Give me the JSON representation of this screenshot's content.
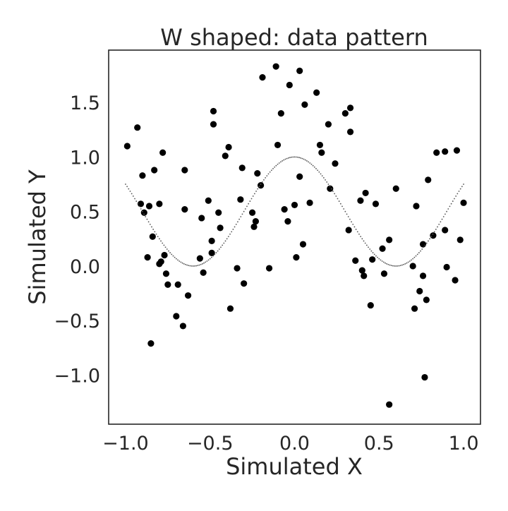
{
  "chart_data": {
    "type": "scatter",
    "title": "W shaped: data pattern",
    "xlabel": "Simulated X",
    "ylabel": "Simulated Y",
    "xlim": [
      -1.1,
      1.1
    ],
    "ylim": [
      -1.45,
      1.98
    ],
    "xticks": [
      -1.0,
      -0.5,
      0.0,
      0.5,
      1.0
    ],
    "xtick_labels": [
      "−1.0",
      "−0.5",
      "0.0",
      "0.5",
      "1.0"
    ],
    "yticks": [
      -1.0,
      -0.5,
      0.0,
      0.5,
      1.0,
      1.5
    ],
    "ytick_labels": [
      "−1.0",
      "−0.5",
      "0.0",
      "0.5",
      "1.0",
      "1.5"
    ],
    "grid": false,
    "point_color": "#000000",
    "curve_color": "#555555",
    "series": [
      {
        "kind": "scatter",
        "points": [
          [
            -0.99,
            1.1
          ],
          [
            -0.93,
            1.27
          ],
          [
            -0.91,
            0.57
          ],
          [
            -0.9,
            0.83
          ],
          [
            -0.89,
            0.49
          ],
          [
            -0.87,
            0.08
          ],
          [
            -0.86,
            0.55
          ],
          [
            -0.85,
            -0.71
          ],
          [
            -0.84,
            0.27
          ],
          [
            -0.83,
            0.88
          ],
          [
            -0.8,
            0.57
          ],
          [
            -0.8,
            0.02
          ],
          [
            -0.79,
            0.04
          ],
          [
            -0.78,
            1.04
          ],
          [
            -0.77,
            0.1
          ],
          [
            -0.76,
            -0.07
          ],
          [
            -0.75,
            -0.17
          ],
          [
            -0.7,
            -0.46
          ],
          [
            -0.69,
            -0.17
          ],
          [
            -0.66,
            -0.55
          ],
          [
            -0.65,
            0.88
          ],
          [
            -0.65,
            0.52
          ],
          [
            -0.63,
            -0.27
          ],
          [
            -0.56,
            0.07
          ],
          [
            -0.55,
            0.44
          ],
          [
            -0.54,
            -0.06
          ],
          [
            -0.51,
            0.6
          ],
          [
            -0.49,
            0.12
          ],
          [
            -0.49,
            0.23
          ],
          [
            -0.48,
            1.42
          ],
          [
            -0.48,
            1.3
          ],
          [
            -0.45,
            0.49
          ],
          [
            -0.44,
            0.35
          ],
          [
            -0.41,
            1.01
          ],
          [
            -0.39,
            1.09
          ],
          [
            -0.38,
            -0.39
          ],
          [
            -0.34,
            -0.02
          ],
          [
            -0.32,
            0.61
          ],
          [
            -0.31,
            0.9
          ],
          [
            -0.3,
            -0.16
          ],
          [
            -0.25,
            0.49
          ],
          [
            -0.24,
            0.36
          ],
          [
            -0.23,
            0.41
          ],
          [
            -0.22,
            0.85
          ],
          [
            -0.2,
            0.74
          ],
          [
            -0.19,
            1.73
          ],
          [
            -0.15,
            -0.02
          ],
          [
            -0.11,
            1.83
          ],
          [
            -0.1,
            1.11
          ],
          [
            -0.08,
            1.4
          ],
          [
            -0.06,
            0.52
          ],
          [
            -0.04,
            0.41
          ],
          [
            -0.03,
            1.66
          ],
          [
            0.0,
            0.56
          ],
          [
            0.01,
            0.08
          ],
          [
            0.03,
            0.82
          ],
          [
            0.03,
            1.79
          ],
          [
            0.05,
            0.2
          ],
          [
            0.06,
            1.48
          ],
          [
            0.09,
            0.58
          ],
          [
            0.13,
            1.59
          ],
          [
            0.15,
            1.11
          ],
          [
            0.16,
            1.04
          ],
          [
            0.2,
            1.3
          ],
          [
            0.21,
            0.71
          ],
          [
            0.24,
            0.94
          ],
          [
            0.3,
            1.4
          ],
          [
            0.32,
            0.33
          ],
          [
            0.33,
            1.23
          ],
          [
            0.33,
            1.45
          ],
          [
            0.36,
            0.05
          ],
          [
            0.39,
            0.6
          ],
          [
            0.4,
            -0.04
          ],
          [
            0.41,
            -0.09
          ],
          [
            0.42,
            0.67
          ],
          [
            0.45,
            -0.36
          ],
          [
            0.46,
            0.06
          ],
          [
            0.48,
            0.57
          ],
          [
            0.52,
            0.16
          ],
          [
            0.53,
            -0.07
          ],
          [
            0.56,
            0.24
          ],
          [
            0.56,
            -1.27
          ],
          [
            0.6,
            0.71
          ],
          [
            0.7,
            0.0
          ],
          [
            0.71,
            -0.39
          ],
          [
            0.72,
            0.55
          ],
          [
            0.74,
            -0.23
          ],
          [
            0.76,
            -0.09
          ],
          [
            0.76,
            0.2
          ],
          [
            0.77,
            -1.02
          ],
          [
            0.78,
            -0.31
          ],
          [
            0.79,
            0.79
          ],
          [
            0.82,
            0.28
          ],
          [
            0.84,
            1.04
          ],
          [
            0.89,
            1.05
          ],
          [
            0.89,
            0.33
          ],
          [
            0.9,
            -0.01
          ],
          [
            0.95,
            -0.13
          ],
          [
            0.96,
            1.06
          ],
          [
            0.98,
            0.24
          ],
          [
            1.0,
            0.58
          ]
        ]
      },
      {
        "kind": "curve",
        "function": "w_shape",
        "x_range": [
          -1.0,
          1.0
        ]
      }
    ]
  }
}
